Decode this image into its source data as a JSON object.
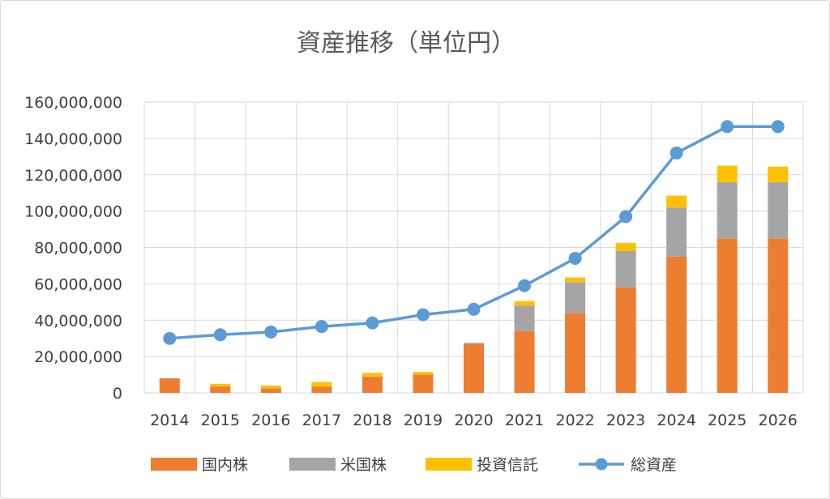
{
  "chart_data": {
    "type": "bar",
    "title": "資産推移（単位円）",
    "xlabel": "",
    "ylabel": "",
    "categories": [
      "2014",
      "2015",
      "2016",
      "2017",
      "2018",
      "2019",
      "2020",
      "2021",
      "2022",
      "2023",
      "2024",
      "2025",
      "2026"
    ],
    "ylim": [
      0,
      160000000
    ],
    "yticks": [
      0,
      20000000,
      40000000,
      60000000,
      80000000,
      100000000,
      120000000,
      140000000,
      160000000
    ],
    "ytick_labels": [
      "0",
      "20,000,000",
      "40,000,000",
      "60,000,000",
      "80,000,000",
      "100,000,000",
      "120,000,000",
      "140,000,000",
      "160,000,000"
    ],
    "grid": true,
    "legend_position": "bottom",
    "series": [
      {
        "name": "国内株",
        "kind": "stacked-bar",
        "color": "#ED7D31",
        "values": [
          8000000,
          3500000,
          2500000,
          3500000,
          9000000,
          10000000,
          27000000,
          34000000,
          44000000,
          58000000,
          75000000,
          85000000,
          85000000
        ]
      },
      {
        "name": "米国株",
        "kind": "stacked-bar",
        "color": "#A5A5A5",
        "values": [
          0,
          0,
          0,
          0,
          0,
          0,
          500000,
          14000000,
          17000000,
          20000000,
          27000000,
          31000000,
          31000000
        ]
      },
      {
        "name": "投資信託",
        "kind": "stacked-bar",
        "color": "#FFC000",
        "values": [
          0,
          1500000,
          1500000,
          2500000,
          2000000,
          1500000,
          0,
          2500000,
          2500000,
          4500000,
          6500000,
          9000000,
          8500000
        ]
      },
      {
        "name": "総資産",
        "kind": "line",
        "color": "#5B9BD5",
        "values": [
          30000000,
          32000000,
          33500000,
          36500000,
          38500000,
          43000000,
          46000000,
          59000000,
          74000000,
          97000000,
          132000000,
          146500000,
          146500000
        ]
      }
    ]
  }
}
